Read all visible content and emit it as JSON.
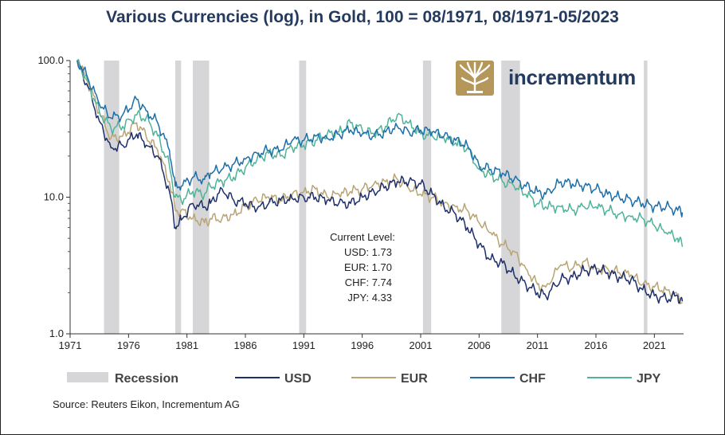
{
  "title": "Various Currencies (log), in Gold, 100 = 08/1971, 08/1971-05/2023",
  "source": "Source: Reuters Eikon, Incrementum AG",
  "brand": {
    "name": "incrementum",
    "icon": "tree-logo-icon",
    "color": "#b49759"
  },
  "annotation": {
    "heading": "Current Level:",
    "lines": [
      "USD: 1.73",
      "EUR: 1.70",
      "CHF: 7.74",
      "JPY: 4.33"
    ]
  },
  "chart_data": {
    "type": "line",
    "title": "Various Currencies (log), in Gold, 100 = 08/1971, 08/1971-05/2023",
    "xlabel": "",
    "ylabel": "",
    "yscale": "log",
    "xlim": [
      1971,
      2023.5
    ],
    "ylim": [
      1.0,
      100.0
    ],
    "xticks": [
      1971,
      1976,
      1981,
      1986,
      1991,
      1996,
      2001,
      2006,
      2011,
      2016,
      2021
    ],
    "yticks": [
      1.0,
      10.0,
      100.0
    ],
    "ytick_labels": [
      "1.0",
      "10.0",
      "100.0"
    ],
    "grid": false,
    "legend_position": "bottom",
    "recession": {
      "name": "Recession",
      "color": "#d6d6d8",
      "periods": [
        [
          1973.9,
          1975.2
        ],
        [
          1980.0,
          1980.5
        ],
        [
          1981.5,
          1982.9
        ],
        [
          1990.6,
          1991.2
        ],
        [
          2001.2,
          2001.9
        ],
        [
          2007.9,
          2009.5
        ],
        [
          2020.1,
          2020.4
        ]
      ]
    },
    "series": [
      {
        "name": "USD",
        "color": "#1f2f6b",
        "x": [
          1971.6,
          1972.5,
          1973.5,
          1974.5,
          1975.5,
          1976.7,
          1977.5,
          1978.5,
          1979.5,
          1980.0,
          1980.5,
          1981.5,
          1982.5,
          1983.0,
          1984.0,
          1985.0,
          1986.0,
          1987.0,
          1988.0,
          1989.0,
          1990.0,
          1991.0,
          1992.0,
          1993.0,
          1994.0,
          1995.0,
          1996.0,
          1997.0,
          1998.0,
          1999.0,
          2000.0,
          2001.0,
          2002.0,
          2003.0,
          2004.0,
          2005.0,
          2006.0,
          2007.0,
          2008.0,
          2009.0,
          2010.0,
          2011.0,
          2011.7,
          2013.0,
          2014.0,
          2015.0,
          2016.0,
          2017.0,
          2018.0,
          2019.0,
          2020.0,
          2021.0,
          2022.0,
          2023.0,
          2023.4
        ],
        "values": [
          100,
          65,
          36,
          23,
          24,
          29,
          24,
          20,
          11,
          6.0,
          6.8,
          9.0,
          8.5,
          9.0,
          11.5,
          9.5,
          9.0,
          8.2,
          9.0,
          9.5,
          9.8,
          10.0,
          10.0,
          9.5,
          9.0,
          9.0,
          10.0,
          11.0,
          12.0,
          13.0,
          13.0,
          12.5,
          10.5,
          8.5,
          7.5,
          6.0,
          4.5,
          3.5,
          3.3,
          2.7,
          2.3,
          2.0,
          1.9,
          2.5,
          2.6,
          2.9,
          3.0,
          2.8,
          2.6,
          2.5,
          2.1,
          1.9,
          1.8,
          1.9,
          1.73
        ]
      },
      {
        "name": "EUR",
        "color": "#b8a474",
        "x": [
          1971.6,
          1972.5,
          1973.5,
          1974.5,
          1975.5,
          1976.7,
          1977.5,
          1978.5,
          1979.5,
          1980.0,
          1980.5,
          1981.5,
          1982.5,
          1983.0,
          1984.0,
          1985.0,
          1986.0,
          1987.0,
          1988.0,
          1989.0,
          1990.0,
          1991.0,
          1992.0,
          1993.0,
          1994.0,
          1995.0,
          1996.0,
          1997.0,
          1998.0,
          1999.0,
          2000.0,
          2001.0,
          2002.0,
          2003.0,
          2004.0,
          2005.0,
          2006.0,
          2007.0,
          2008.0,
          2009.0,
          2010.0,
          2011.0,
          2011.7,
          2013.0,
          2014.0,
          2015.0,
          2016.0,
          2017.0,
          2018.0,
          2019.0,
          2020.0,
          2021.0,
          2022.0,
          2023.0,
          2023.4
        ],
        "values": [
          100,
          70,
          42,
          27,
          28,
          35,
          28,
          22,
          13,
          8.0,
          8.0,
          7.0,
          6.5,
          7.0,
          7.0,
          7.5,
          8.5,
          9.5,
          10.0,
          9.5,
          10.5,
          11.0,
          11.5,
          10.0,
          10.5,
          11.0,
          11.5,
          12.5,
          13.0,
          13.5,
          11.5,
          10.5,
          10.0,
          9.0,
          8.5,
          8.0,
          6.5,
          5.5,
          4.5,
          4.0,
          3.0,
          2.3,
          2.2,
          3.2,
          3.0,
          3.4,
          3.0,
          3.0,
          2.8,
          2.7,
          2.3,
          2.2,
          2.1,
          1.9,
          1.7
        ]
      },
      {
        "name": "CHF",
        "color": "#1e6fa8",
        "x": [
          1971.6,
          1972.5,
          1973.5,
          1974.5,
          1975.5,
          1976.7,
          1977.5,
          1978.5,
          1979.5,
          1980.0,
          1980.5,
          1981.5,
          1982.5,
          1983.0,
          1984.0,
          1985.0,
          1986.0,
          1987.0,
          1988.0,
          1989.0,
          1990.0,
          1991.0,
          1992.0,
          1993.0,
          1994.0,
          1995.0,
          1996.0,
          1997.0,
          1998.0,
          1999.0,
          2000.0,
          2001.0,
          2002.0,
          2003.0,
          2004.0,
          2005.0,
          2006.0,
          2007.0,
          2008.0,
          2009.0,
          2010.0,
          2011.0,
          2011.7,
          2013.0,
          2014.0,
          2015.0,
          2016.0,
          2017.0,
          2018.0,
          2019.0,
          2020.0,
          2021.0,
          2022.0,
          2023.0,
          2023.4
        ],
        "values": [
          100,
          75,
          48,
          38,
          40,
          52,
          43,
          35,
          22,
          12.0,
          12.0,
          14.0,
          13.5,
          15.0,
          16.0,
          17.5,
          19.0,
          21.0,
          22.0,
          22.0,
          26.0,
          26.0,
          28.0,
          27.0,
          29.0,
          31.0,
          29.0,
          28.0,
          30.0,
          33.0,
          30.0,
          31.0,
          30.0,
          28.0,
          26.0,
          24.0,
          17.0,
          16.0,
          15.0,
          13.5,
          12.0,
          11.0,
          10.5,
          13.0,
          12.5,
          12.0,
          11.5,
          10.5,
          10.0,
          9.5,
          9.0,
          8.5,
          8.5,
          8.0,
          7.74
        ]
      },
      {
        "name": "JPY",
        "color": "#4fb39a",
        "x": [
          1971.6,
          1972.5,
          1973.5,
          1974.5,
          1975.5,
          1976.7,
          1977.5,
          1978.5,
          1979.5,
          1980.0,
          1980.5,
          1981.5,
          1982.5,
          1983.0,
          1984.0,
          1985.0,
          1986.0,
          1987.0,
          1988.0,
          1989.0,
          1990.0,
          1991.0,
          1992.0,
          1993.0,
          1994.0,
          1995.0,
          1996.0,
          1997.0,
          1998.0,
          1999.0,
          2000.0,
          2001.0,
          2002.0,
          2003.0,
          2004.0,
          2005.0,
          2006.0,
          2007.0,
          2008.0,
          2009.0,
          2010.0,
          2011.0,
          2011.7,
          2013.0,
          2014.0,
          2015.0,
          2016.0,
          2017.0,
          2018.0,
          2019.0,
          2020.0,
          2021.0,
          2022.0,
          2023.0,
          2023.4
        ],
        "values": [
          100,
          70,
          42,
          32,
          33,
          40,
          38,
          28,
          17,
          10.0,
          9.5,
          11.0,
          10.5,
          12.0,
          13.0,
          14.0,
          16.5,
          19.0,
          21.0,
          20.0,
          23.0,
          24.0,
          26.0,
          29.0,
          30.0,
          35.0,
          31.0,
          29.0,
          33.0,
          40.0,
          35.0,
          29.0,
          28.0,
          27.0,
          25.0,
          23.0,
          16.0,
          14.5,
          13.0,
          12.0,
          10.5,
          9.0,
          8.5,
          8.5,
          8.0,
          8.5,
          8.5,
          8.0,
          7.5,
          7.2,
          7.0,
          6.2,
          5.5,
          5.0,
          4.33
        ]
      }
    ]
  }
}
